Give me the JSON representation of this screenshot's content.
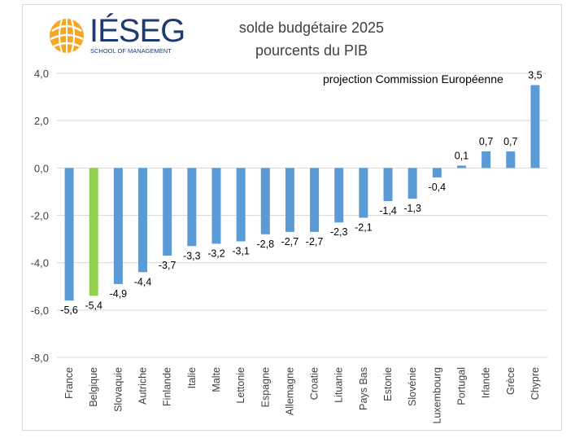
{
  "logo": {
    "wordmark": "IÉSEG",
    "tagline": "SCHOOL OF MANAGEMENT",
    "color": "#1f3a6e",
    "accent": "#f5a623"
  },
  "chart_data": {
    "type": "bar",
    "title": "solde budgétaire 2025",
    "subtitle": "pourcents du PIB",
    "annotation": "projection Commission Européenne",
    "categories": [
      "France",
      "Belgique",
      "Slovaquie",
      "Autriche",
      "Finlande",
      "Italie",
      "Malte",
      "Lettonie",
      "Espagne",
      "Allemagne",
      "Croatie",
      "Lituanie",
      "Pays Bas",
      "Estonie",
      "Slovénie",
      "Luxembourg",
      "Portugal",
      "Irlande",
      "Grèce",
      "Chypre"
    ],
    "values": [
      -5.6,
      -5.4,
      -4.9,
      -4.4,
      -3.7,
      -3.3,
      -3.2,
      -3.1,
      -2.8,
      -2.7,
      -2.7,
      -2.3,
      -2.1,
      -1.4,
      -1.3,
      -0.4,
      0.1,
      0.7,
      0.7,
      3.5
    ],
    "value_labels": [
      "-5,6",
      "-5,4",
      "-4,9",
      "-4,4",
      "-3,7",
      "-3,3",
      "-3,2",
      "-3,1",
      "-2,8",
      "-2,7",
      "-2,7",
      "-2,3",
      "-2,1",
      "-1,4",
      "-1,3",
      "-0,4",
      "0,1",
      "0,7",
      "0,7",
      "3,5"
    ],
    "yticks": [
      4.0,
      2.0,
      0.0,
      -2.0,
      -4.0,
      -6.0,
      -8.0
    ],
    "ytick_labels": [
      "4,0",
      "2,0",
      "0,0",
      "-2,0",
      "-4,0",
      "-6,0",
      "-8,0"
    ],
    "ylim": [
      -8,
      4
    ],
    "xlabel": "",
    "ylabel": "",
    "grid": true,
    "colors": {
      "bar": "#5b9bd5",
      "highlight": "#92d050",
      "grid": "#d9d9d9",
      "text": "#404040"
    },
    "highlight_category": "Belgique"
  }
}
